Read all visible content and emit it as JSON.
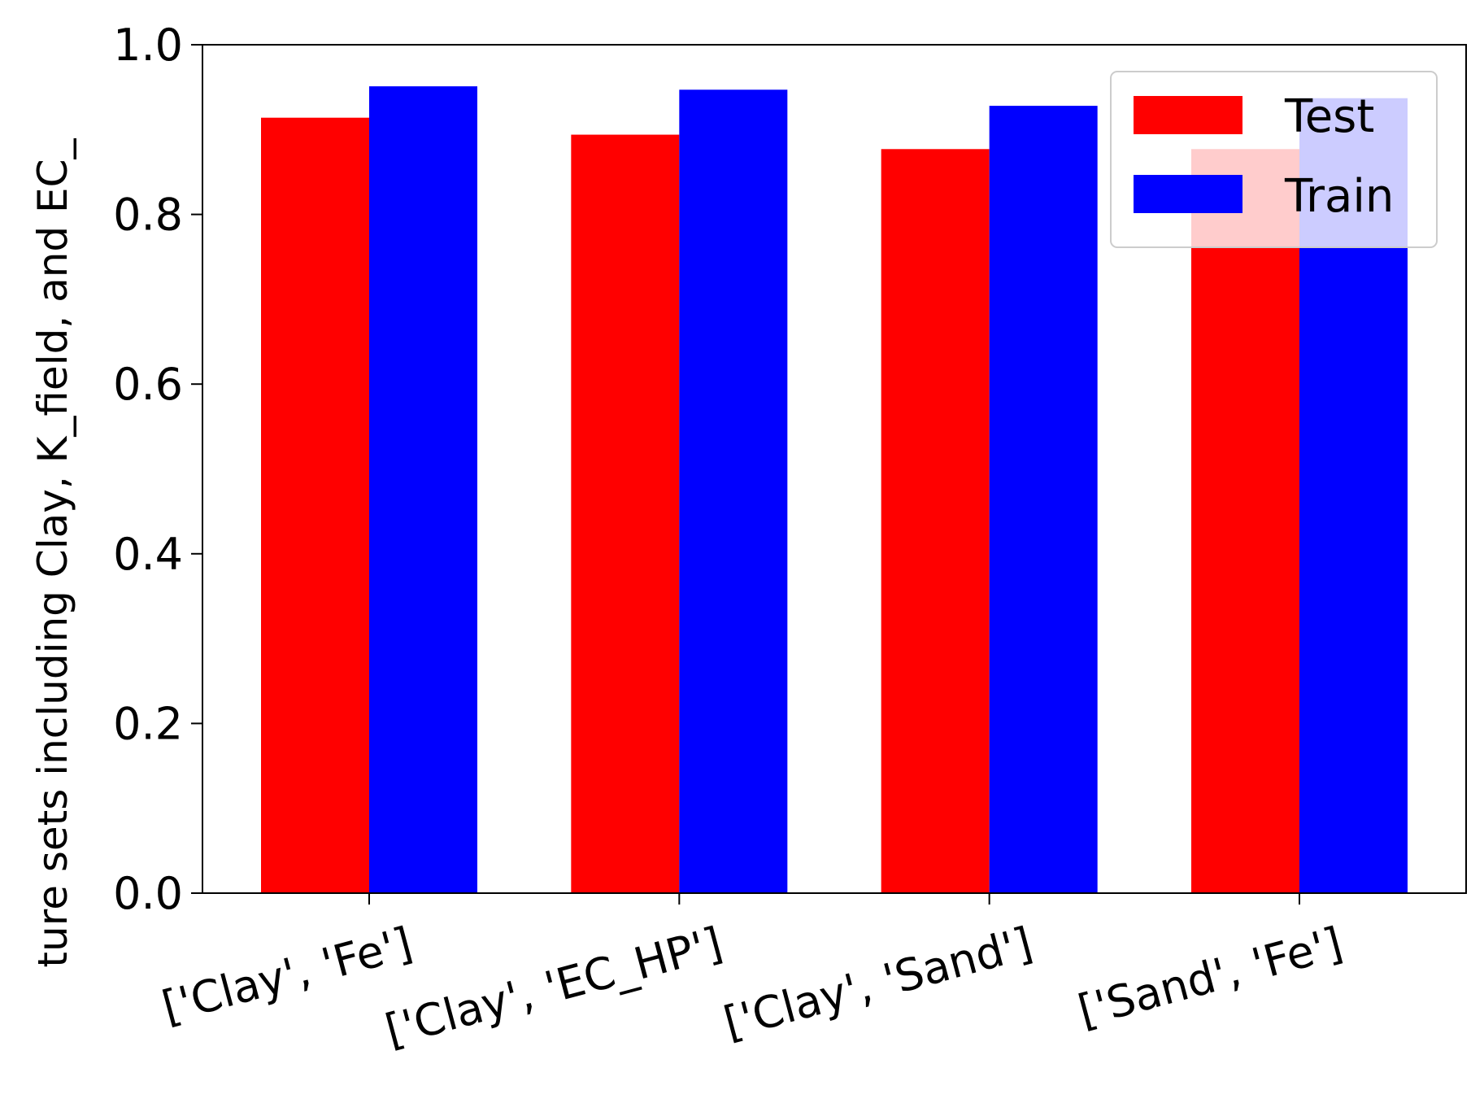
{
  "chart_data": {
    "type": "bar",
    "title": "",
    "xlabel": "",
    "ylabel": "ture sets including Clay, K_field, and EC_",
    "categories": [
      "['Clay', 'Fe']",
      "['Clay', 'EC_HP']",
      "['Clay', 'Sand']",
      "['Sand', 'Fe']"
    ],
    "series": [
      {
        "name": "Test",
        "color": "#ff0000",
        "values": [
          0.914,
          0.894,
          0.877,
          0.877
        ]
      },
      {
        "name": "Train",
        "color": "#0000ff",
        "values": [
          0.951,
          0.947,
          0.928,
          0.937
        ]
      }
    ],
    "ylim": [
      0,
      1.0
    ],
    "yticks": [
      "0.0",
      "0.2",
      "0.4",
      "0.6",
      "0.8",
      "1.0"
    ],
    "grid": false,
    "legend": {
      "position": "top-right",
      "entries": [
        "Test",
        "Train"
      ]
    }
  }
}
